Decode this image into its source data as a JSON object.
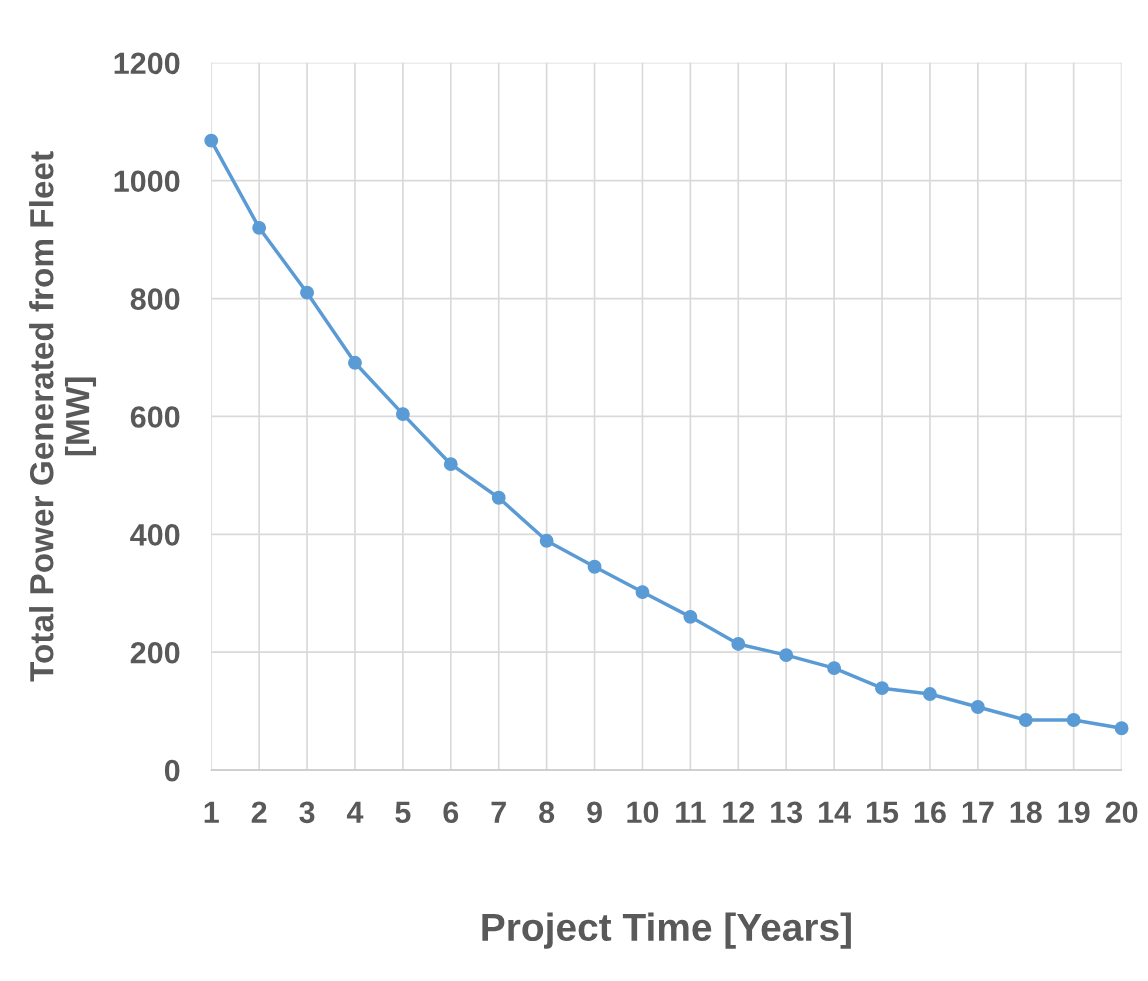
{
  "chart_data": {
    "type": "line",
    "xlabel": "Project Time [Years]",
    "ylabel": "Total Power Generated from Fleet\n[MW]",
    "x": [
      1,
      2,
      3,
      4,
      5,
      6,
      7,
      8,
      9,
      10,
      11,
      12,
      13,
      14,
      15,
      16,
      17,
      18,
      19,
      20
    ],
    "series": [
      {
        "color": "#5b9bd5",
        "values": [
          1068,
          920,
          810,
          691,
          604,
          519,
          462,
          389,
          345,
          302,
          260,
          214,
          195,
          173,
          139,
          129,
          107,
          85,
          85,
          71
        ]
      }
    ],
    "xlim": [
      1,
      20
    ],
    "xticks": [
      1,
      2,
      3,
      4,
      5,
      6,
      7,
      8,
      9,
      10,
      11,
      12,
      13,
      14,
      15,
      16,
      17,
      18,
      19,
      20
    ],
    "ylim": [
      0,
      1200
    ],
    "yticks": [
      0,
      200,
      400,
      600,
      800,
      1000,
      1200
    ],
    "grid": true,
    "marker": "circle",
    "line_style": "solid",
    "legend": false
  }
}
